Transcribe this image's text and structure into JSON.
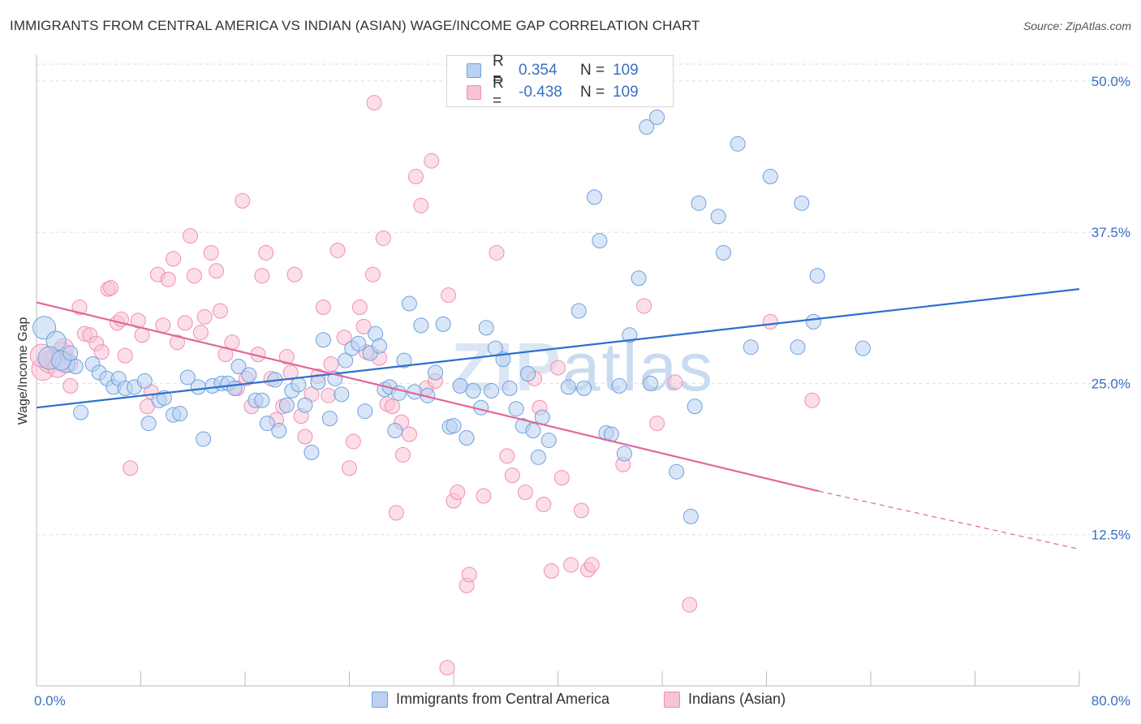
{
  "title": "IMMIGRANTS FROM CENTRAL AMERICA VS INDIAN (ASIAN) WAGE/INCOME GAP CORRELATION CHART",
  "source": "Source: ZipAtlas.com",
  "watermark": {
    "zip": "ZIP",
    "atlas": "atlas"
  },
  "legend": {
    "series1": {
      "r_label": "R =",
      "r_value": "0.354",
      "n_label": "N =",
      "n_value": "109",
      "color": "#6fa0de"
    },
    "series2": {
      "r_label": "R =",
      "r_value": "-0.438",
      "n_label": "N =",
      "n_value": "109",
      "color": "#f08fb0"
    }
  },
  "bottom_legend": {
    "series1": "Immigrants from Central America",
    "series2": "Indians (Asian)"
  },
  "chart_data": {
    "type": "scatter",
    "title": "IMMIGRANTS FROM CENTRAL AMERICA VS INDIAN (ASIAN) WAGE/INCOME GAP CORRELATION CHART",
    "xlabel": "",
    "ylabel": "Wage/Income Gap",
    "xlim": [
      0,
      80
    ],
    "ylim": [
      0,
      52
    ],
    "x_tick_labels": [
      "0.0%",
      "80.0%"
    ],
    "y_ticks": [
      12.5,
      25.0,
      37.5,
      50.0
    ],
    "y_tick_labels": [
      "12.5%",
      "25.0%",
      "37.5%",
      "50.0%"
    ],
    "grid": true,
    "series": [
      {
        "name": "Immigrants from Central America",
        "color": "#6fa0de",
        "fill": "#b9d2f1",
        "trend": {
          "x": [
            0,
            80
          ],
          "y": [
            23.0,
            32.8
          ]
        },
        "points": [
          [
            0.6,
            29.6
          ],
          [
            1.5,
            28.5
          ],
          [
            2.2,
            26.7
          ],
          [
            3,
            26.4
          ],
          [
            3.4,
            22.6
          ],
          [
            4.3,
            26.6
          ],
          [
            4.8,
            25.9
          ],
          [
            5.4,
            25.4
          ],
          [
            5.9,
            24.7
          ],
          [
            6.3,
            25.4
          ],
          [
            6.8,
            24.6
          ],
          [
            7.5,
            24.7
          ],
          [
            8.3,
            25.2
          ],
          [
            8.6,
            21.7
          ],
          [
            9.4,
            23.6
          ],
          [
            9.8,
            23.8
          ],
          [
            10.5,
            22.4
          ],
          [
            11,
            22.5
          ],
          [
            11.6,
            25.5
          ],
          [
            12.4,
            24.7
          ],
          [
            12.8,
            20.4
          ],
          [
            13.5,
            24.8
          ],
          [
            14.2,
            25.0
          ],
          [
            14.7,
            25.0
          ],
          [
            15.2,
            24.6
          ],
          [
            15.5,
            26.4
          ],
          [
            16.3,
            25.7
          ],
          [
            16.8,
            23.6
          ],
          [
            17.3,
            23.6
          ],
          [
            17.7,
            21.7
          ],
          [
            18.3,
            25.3
          ],
          [
            18.6,
            21.1
          ],
          [
            19.2,
            23.2
          ],
          [
            19.6,
            24.4
          ],
          [
            20.1,
            24.9
          ],
          [
            20.6,
            23.2
          ],
          [
            21.1,
            19.3
          ],
          [
            21.6,
            25.1
          ],
          [
            22.0,
            28.6
          ],
          [
            22.5,
            22.1
          ],
          [
            22.9,
            25.4
          ],
          [
            23.4,
            24.1
          ],
          [
            23.7,
            26.9
          ],
          [
            24.2,
            27.9
          ],
          [
            24.7,
            28.3
          ],
          [
            25.2,
            22.7
          ],
          [
            25.6,
            27.5
          ],
          [
            26.0,
            29.1
          ],
          [
            26.3,
            28.1
          ],
          [
            26.7,
            24.5
          ],
          [
            27.1,
            24.7
          ],
          [
            27.5,
            21.1
          ],
          [
            27.8,
            24.2
          ],
          [
            28.2,
            26.9
          ],
          [
            28.6,
            31.6
          ],
          [
            29.0,
            24.3
          ],
          [
            29.5,
            29.8
          ],
          [
            30.0,
            24.0
          ],
          [
            30.6,
            25.9
          ],
          [
            31.2,
            29.9
          ],
          [
            31.7,
            21.4
          ],
          [
            32.0,
            21.5
          ],
          [
            32.5,
            24.8
          ],
          [
            33.0,
            20.5
          ],
          [
            33.5,
            24.4
          ],
          [
            34.1,
            23.0
          ],
          [
            34.5,
            29.6
          ],
          [
            34.9,
            24.4
          ],
          [
            35.2,
            27.9
          ],
          [
            35.8,
            27.0
          ],
          [
            36.3,
            24.6
          ],
          [
            36.8,
            22.9
          ],
          [
            37.3,
            21.5
          ],
          [
            37.7,
            25.8
          ],
          [
            38.1,
            21.1
          ],
          [
            38.5,
            18.9
          ],
          [
            38.8,
            22.2
          ],
          [
            39.3,
            20.3
          ],
          [
            40.8,
            24.7
          ],
          [
            41.6,
            31.0
          ],
          [
            42.0,
            24.6
          ],
          [
            42.8,
            40.4
          ],
          [
            43.2,
            36.8
          ],
          [
            43.7,
            20.9
          ],
          [
            44.1,
            20.8
          ],
          [
            44.7,
            24.8
          ],
          [
            45.1,
            19.2
          ],
          [
            45.5,
            29.0
          ],
          [
            46.2,
            33.7
          ],
          [
            46.8,
            46.2
          ],
          [
            47.1,
            25.0
          ],
          [
            47.6,
            47.0
          ],
          [
            49.1,
            17.7
          ],
          [
            50.2,
            14.0
          ],
          [
            50.5,
            23.1
          ],
          [
            50.8,
            39.9
          ],
          [
            52.3,
            38.8
          ],
          [
            52.7,
            35.8
          ],
          [
            53.8,
            44.8
          ],
          [
            54.8,
            28.0
          ],
          [
            56.3,
            42.1
          ],
          [
            58.4,
            28.0
          ],
          [
            58.7,
            39.9
          ],
          [
            59.6,
            30.1
          ],
          [
            59.9,
            33.9
          ],
          [
            63.4,
            27.9
          ],
          [
            1.0,
            27.1
          ],
          [
            1.9,
            26.9
          ],
          [
            2.6,
            27.5
          ]
        ],
        "sizes_hint": "larger markers near x=0"
      },
      {
        "name": "Indians (Asian)",
        "color": "#f08fb0",
        "fill": "#f7c3d6",
        "trend": {
          "x": [
            0,
            60
          ],
          "y": [
            31.7,
            16.1
          ]
        },
        "trend_dashed": {
          "x": [
            60,
            80
          ],
          "y": [
            16.1,
            11.3
          ]
        },
        "points": [
          [
            0.5,
            26.2
          ],
          [
            1.0,
            26.8
          ],
          [
            1.4,
            27.0
          ],
          [
            1.9,
            27.6
          ],
          [
            2.4,
            26.7
          ],
          [
            2.6,
            24.8
          ],
          [
            3.3,
            31.3
          ],
          [
            3.7,
            29.1
          ],
          [
            4.1,
            29.0
          ],
          [
            4.6,
            28.3
          ],
          [
            5.0,
            27.6
          ],
          [
            5.5,
            32.8
          ],
          [
            5.7,
            32.9
          ],
          [
            6.2,
            30.0
          ],
          [
            6.5,
            30.3
          ],
          [
            6.8,
            27.3
          ],
          [
            7.2,
            18.0
          ],
          [
            7.8,
            30.2
          ],
          [
            8.1,
            29.0
          ],
          [
            8.5,
            23.1
          ],
          [
            8.8,
            24.3
          ],
          [
            9.3,
            34.0
          ],
          [
            9.7,
            29.8
          ],
          [
            10.1,
            33.6
          ],
          [
            10.5,
            35.3
          ],
          [
            10.8,
            28.4
          ],
          [
            11.4,
            30.0
          ],
          [
            11.8,
            37.2
          ],
          [
            12.1,
            33.9
          ],
          [
            12.6,
            29.2
          ],
          [
            12.9,
            30.5
          ],
          [
            13.4,
            35.8
          ],
          [
            13.8,
            34.3
          ],
          [
            14.1,
            31.0
          ],
          [
            14.5,
            27.4
          ],
          [
            15.0,
            28.4
          ],
          [
            15.4,
            24.6
          ],
          [
            15.8,
            40.1
          ],
          [
            16.1,
            25.4
          ],
          [
            16.5,
            23.1
          ],
          [
            17.0,
            27.4
          ],
          [
            17.3,
            33.9
          ],
          [
            17.6,
            35.8
          ],
          [
            18.0,
            25.4
          ],
          [
            18.4,
            22.0
          ],
          [
            18.9,
            23.1
          ],
          [
            19.2,
            27.2
          ],
          [
            19.5,
            25.9
          ],
          [
            19.8,
            34.0
          ],
          [
            20.3,
            22.3
          ],
          [
            20.6,
            20.6
          ],
          [
            21.1,
            24.1
          ],
          [
            21.6,
            25.6
          ],
          [
            22.0,
            31.3
          ],
          [
            22.4,
            24.0
          ],
          [
            22.6,
            26.6
          ],
          [
            23.1,
            36.0
          ],
          [
            23.6,
            28.8
          ],
          [
            24.0,
            18.0
          ],
          [
            24.3,
            20.2
          ],
          [
            24.8,
            31.3
          ],
          [
            25.1,
            29.7
          ],
          [
            25.3,
            27.6
          ],
          [
            25.8,
            34.0
          ],
          [
            26.3,
            27.1
          ],
          [
            26.6,
            37.0
          ],
          [
            26.9,
            23.3
          ],
          [
            27.3,
            23.1
          ],
          [
            27.6,
            14.3
          ],
          [
            28.0,
            21.8
          ],
          [
            28.1,
            19.1
          ],
          [
            28.6,
            20.8
          ],
          [
            29.1,
            42.1
          ],
          [
            29.5,
            39.7
          ],
          [
            29.9,
            24.6
          ],
          [
            30.3,
            43.4
          ],
          [
            30.6,
            25.2
          ],
          [
            31.6,
            32.3
          ],
          [
            32.0,
            15.3
          ],
          [
            32.3,
            16.0
          ],
          [
            33.0,
            8.3
          ],
          [
            33.2,
            9.2
          ],
          [
            34.3,
            15.7
          ],
          [
            35.3,
            35.8
          ],
          [
            36.1,
            19.0
          ],
          [
            36.5,
            17.4
          ],
          [
            37.5,
            16.0
          ],
          [
            38.2,
            25.4
          ],
          [
            38.6,
            23.0
          ],
          [
            38.9,
            15.0
          ],
          [
            39.5,
            9.5
          ],
          [
            40.0,
            26.3
          ],
          [
            40.3,
            17.2
          ],
          [
            41.0,
            10.0
          ],
          [
            41.8,
            14.5
          ],
          [
            42.3,
            9.6
          ],
          [
            42.6,
            10.0
          ],
          [
            45.0,
            18.3
          ],
          [
            46.6,
            31.4
          ],
          [
            47.6,
            21.7
          ],
          [
            49.0,
            25.1
          ],
          [
            50.1,
            6.7
          ],
          [
            56.3,
            30.1
          ],
          [
            59.5,
            23.6
          ],
          [
            25.9,
            48.2
          ],
          [
            31.5,
            1.5
          ],
          [
            0.4,
            27.3
          ],
          [
            1.6,
            26.3
          ],
          [
            2.1,
            27.9
          ]
        ]
      }
    ]
  }
}
